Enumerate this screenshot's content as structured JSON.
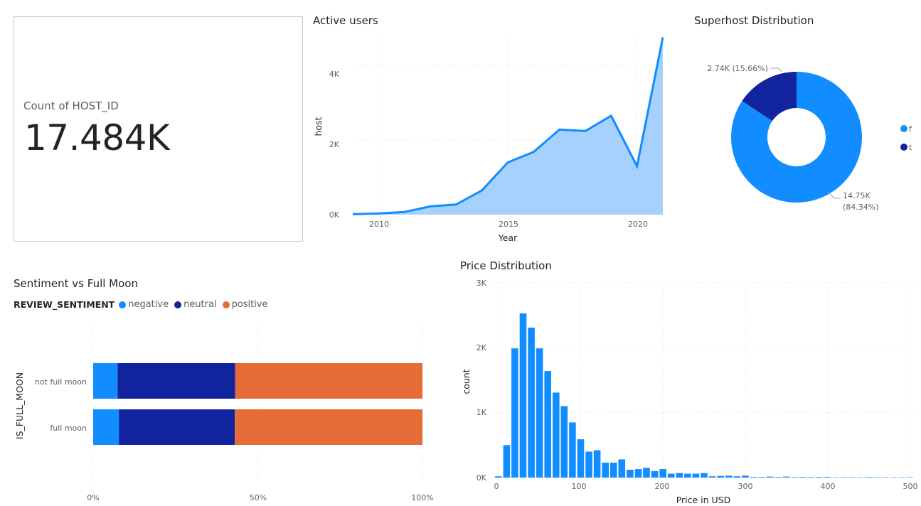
{
  "kpi": {
    "label": "Count of HOST_ID",
    "value": "17.484K"
  },
  "active_users": {
    "title": "Active users",
    "xlabel": "Year",
    "ylabel": "host",
    "xticks": [
      "2010",
      "2015",
      "2020"
    ],
    "yticks": [
      "0K",
      "2K",
      "4K"
    ]
  },
  "superhost": {
    "title": "Superhost Distribution",
    "legend": [
      "f",
      "t"
    ],
    "label_t": "2.74K (15.66%)",
    "label_f_line1": "14.75K",
    "label_f_line2": "(84.34%)"
  },
  "sentiment": {
    "title": "Sentiment vs Full Moon",
    "legend_title": "REVIEW_SENTIMENT",
    "legend": [
      "negative",
      "neutral",
      "positive"
    ],
    "ylabel": "IS_FULL_MOON",
    "categories": [
      "not full moon",
      "full moon"
    ],
    "xticks": [
      "0%",
      "50%",
      "100%"
    ]
  },
  "price": {
    "title": "Price Distribution",
    "xlabel": "Price in USD",
    "ylabel": "count",
    "xticks": [
      "0",
      "100",
      "200",
      "300",
      "400",
      "500"
    ],
    "yticks": [
      "0K",
      "1K",
      "2K",
      "3K"
    ]
  },
  "colors": {
    "light_blue": "#118dff",
    "dark_blue": "#12239e",
    "orange": "#e66c37",
    "area_fill": "#a5d1fc"
  },
  "chart_data": [
    {
      "type": "area",
      "title": "Active users",
      "xlabel": "Year",
      "ylabel": "host",
      "x": [
        2009,
        2010,
        2011,
        2012,
        2013,
        2014,
        2015,
        2016,
        2017,
        2018,
        2019,
        2020,
        2021
      ],
      "values": [
        10,
        30,
        70,
        220,
        270,
        650,
        1400,
        1680,
        2280,
        2240,
        2650,
        1300,
        4750
      ],
      "ylim": [
        0,
        4800
      ],
      "grid": true
    },
    {
      "type": "pie",
      "title": "Superhost Distribution",
      "categories": [
        "f",
        "t"
      ],
      "values": [
        14750,
        2740
      ],
      "percent": [
        84.34,
        15.66
      ],
      "donut": true,
      "legend": "right"
    },
    {
      "type": "bar",
      "orientation": "horizontal",
      "stacked": "100%",
      "title": "Sentiment vs Full Moon",
      "ylabel": "IS_FULL_MOON",
      "categories": [
        "not full moon",
        "full moon"
      ],
      "series": [
        {
          "name": "negative",
          "values": [
            7.4,
            7.8
          ]
        },
        {
          "name": "neutral",
          "values": [
            35.7,
            35.2
          ]
        },
        {
          "name": "positive",
          "values": [
            56.9,
            57.0
          ]
        }
      ],
      "xlim": [
        0,
        100
      ],
      "legend": "top-left"
    },
    {
      "type": "bar",
      "title": "Price Distribution",
      "xlabel": "Price in USD",
      "ylabel": "count",
      "bin_width": 10,
      "x": [
        0,
        10,
        20,
        30,
        40,
        50,
        60,
        70,
        80,
        90,
        100,
        110,
        120,
        130,
        140,
        150,
        160,
        170,
        180,
        190,
        200,
        210,
        220,
        230,
        240,
        250,
        260,
        270,
        280,
        290,
        300,
        310,
        320,
        330,
        340,
        350,
        360,
        370,
        380,
        390,
        400,
        410,
        420,
        430,
        440,
        450,
        460,
        470,
        480,
        490,
        500
      ],
      "values": [
        20,
        500,
        1990,
        2530,
        2310,
        1990,
        1640,
        1310,
        1100,
        850,
        590,
        400,
        420,
        230,
        230,
        280,
        120,
        130,
        150,
        100,
        130,
        60,
        70,
        60,
        60,
        70,
        20,
        25,
        30,
        20,
        30,
        10,
        10,
        15,
        10,
        15,
        8,
        10,
        8,
        10,
        10,
        5,
        5,
        5,
        5,
        8,
        5,
        5,
        5,
        5,
        5
      ],
      "ylim": [
        0,
        3000
      ],
      "xlim": [
        -5,
        505
      ],
      "grid": true
    }
  ]
}
